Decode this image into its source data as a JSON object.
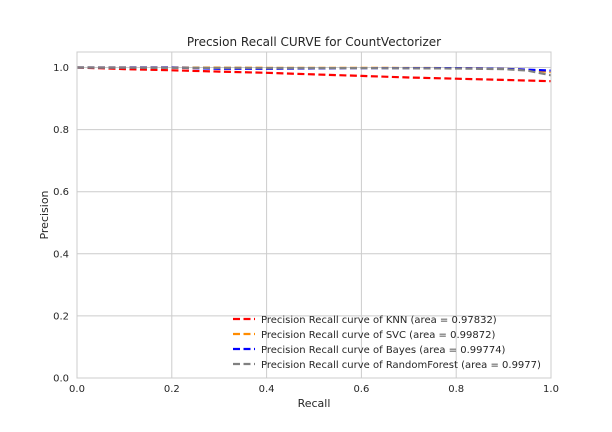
{
  "chart_data": {
    "type": "line",
    "title": "Precsion Recall CURVE for CountVectorizer",
    "xlabel": "Recall",
    "ylabel": "Precision",
    "xlim": [
      0.0,
      1.0
    ],
    "ylim": [
      0.0,
      1.05
    ],
    "xticks": [
      0.0,
      0.2,
      0.4,
      0.6,
      0.8,
      1.0
    ],
    "yticks": [
      0.0,
      0.2,
      0.4,
      0.6,
      0.8,
      1.0
    ],
    "xtick_labels": [
      "0.0",
      "0.2",
      "0.4",
      "0.6",
      "0.8",
      "1.0"
    ],
    "ytick_labels": [
      "0.0",
      "0.2",
      "0.4",
      "0.6",
      "0.8",
      "1.0"
    ],
    "grid": true,
    "legend_position": "lower-right",
    "series": [
      {
        "name": "Precision Recall curve of KNN (area = 0.97832)",
        "color": "#ff0000",
        "x": [
          0.0,
          0.1,
          0.2,
          0.3,
          0.4,
          0.5,
          0.6,
          0.7,
          0.8,
          0.9,
          1.0
        ],
        "y": [
          1.0,
          0.995,
          0.991,
          0.987,
          0.983,
          0.978,
          0.973,
          0.968,
          0.964,
          0.96,
          0.956
        ]
      },
      {
        "name": "Precision Recall curve of SVC (area = 0.99872)",
        "color": "#ff8c00",
        "x": [
          0.0,
          0.2,
          0.4,
          0.6,
          0.8,
          0.9,
          0.95,
          1.0
        ],
        "y": [
          1.0,
          1.0,
          0.999,
          0.999,
          0.998,
          0.996,
          0.993,
          0.985
        ]
      },
      {
        "name": "Precision Recall curve of Bayes (area = 0.99774)",
        "color": "#0000ff",
        "x": [
          0.0,
          0.2,
          0.3,
          0.4,
          0.6,
          0.8,
          0.9,
          0.95,
          1.0
        ],
        "y": [
          1.0,
          1.0,
          0.996,
          0.996,
          0.998,
          0.998,
          0.996,
          0.993,
          0.99
        ]
      },
      {
        "name": "Precision Recall curve of RandomForest (area = 0.9977)",
        "color": "#808080",
        "x": [
          0.0,
          0.2,
          0.4,
          0.6,
          0.8,
          0.9,
          0.95,
          1.0
        ],
        "y": [
          1.0,
          0.999,
          0.998,
          0.998,
          0.997,
          0.995,
          0.99,
          0.975
        ]
      }
    ]
  }
}
